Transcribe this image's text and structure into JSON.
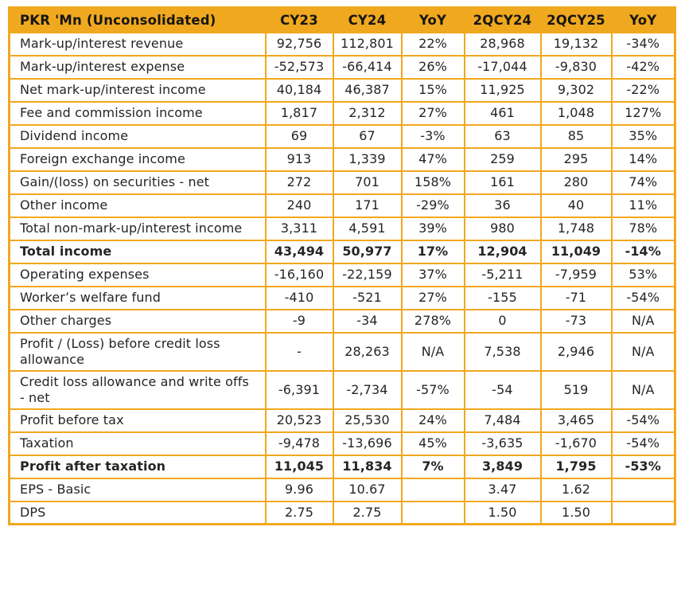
{
  "colors": {
    "gold": "#F0A81E",
    "header_text": "#161616",
    "body_text": "#252525"
  },
  "table": {
    "columns": [
      {
        "label": "PKR 'Mn (Unconsolidated)"
      },
      {
        "label": "CY23"
      },
      {
        "label": "CY24"
      },
      {
        "label": "YoY"
      },
      {
        "label": "2QCY24"
      },
      {
        "label": "2QCY25"
      },
      {
        "label": "YoY"
      }
    ],
    "rows": [
      {
        "label": "Mark-up/interest revenue",
        "bold": false,
        "values": [
          "92,756",
          "112,801",
          "22%",
          "28,968",
          "19,132",
          "-34%"
        ]
      },
      {
        "label": "Mark-up/interest expense",
        "bold": false,
        "values": [
          "-52,573",
          "-66,414",
          "26%",
          "-17,044",
          "-9,830",
          "-42%"
        ]
      },
      {
        "label": "Net mark-up/interest income",
        "bold": false,
        "values": [
          "40,184",
          "46,387",
          "15%",
          "11,925",
          "9,302",
          "-22%"
        ]
      },
      {
        "label": "Fee and commission income",
        "bold": false,
        "values": [
          "1,817",
          "2,312",
          "27%",
          "461",
          "1,048",
          "127%"
        ]
      },
      {
        "label": "Dividend income",
        "bold": false,
        "values": [
          "69",
          "67",
          "-3%",
          "63",
          "85",
          "35%"
        ]
      },
      {
        "label": "Foreign exchange income",
        "bold": false,
        "values": [
          "913",
          "1,339",
          "47%",
          "259",
          "295",
          "14%"
        ]
      },
      {
        "label": "Gain/(loss) on securities - net",
        "bold": false,
        "values": [
          "272",
          "701",
          "158%",
          "161",
          "280",
          "74%"
        ]
      },
      {
        "label": "Other income",
        "bold": false,
        "values": [
          "240",
          "171",
          "-29%",
          "36",
          "40",
          "11%"
        ]
      },
      {
        "label": "Total non-mark-up/interest income",
        "bold": false,
        "values": [
          "3,311",
          "4,591",
          "39%",
          "980",
          "1,748",
          "78%"
        ]
      },
      {
        "label": "Total income",
        "bold": true,
        "values": [
          "43,494",
          "50,977",
          "17%",
          "12,904",
          "11,049",
          "-14%"
        ]
      },
      {
        "label": "Operating expenses",
        "bold": false,
        "values": [
          "-16,160",
          "-22,159",
          "37%",
          "-5,211",
          "-7,959",
          "53%"
        ]
      },
      {
        "label": "Worker’s welfare fund",
        "bold": false,
        "values": [
          "-410",
          "-521",
          "27%",
          "-155",
          "-71",
          "-54%"
        ]
      },
      {
        "label": "Other charges",
        "bold": false,
        "values": [
          "-9",
          "-34",
          "278%",
          "0",
          "-73",
          "N/A"
        ]
      },
      {
        "label": "Profit / (Loss) before credit loss allowance",
        "bold": false,
        "values": [
          "-",
          "28,263",
          "N/A",
          "7,538",
          "2,946",
          "N/A"
        ]
      },
      {
        "label": "Credit loss allowance and write offs - net",
        "bold": false,
        "values": [
          "-6,391",
          "-2,734",
          "-57%",
          "-54",
          "519",
          "N/A"
        ]
      },
      {
        "label": "Profit before tax",
        "bold": false,
        "values": [
          "20,523",
          "25,530",
          "24%",
          "7,484",
          "3,465",
          "-54%"
        ]
      },
      {
        "label": "Taxation",
        "bold": false,
        "values": [
          "-9,478",
          "-13,696",
          "45%",
          "-3,635",
          "-1,670",
          "-54%"
        ]
      },
      {
        "label": "Profit after taxation",
        "bold": true,
        "values": [
          "11,045",
          "11,834",
          "7%",
          "3,849",
          "1,795",
          "-53%"
        ]
      },
      {
        "label": "EPS - Basic",
        "bold": false,
        "values": [
          "9.96",
          "10.67",
          "",
          "3.47",
          "1.62",
          ""
        ]
      },
      {
        "label": "DPS",
        "bold": false,
        "values": [
          "2.75",
          "2.75",
          "",
          "1.50",
          "1.50",
          ""
        ]
      }
    ]
  }
}
